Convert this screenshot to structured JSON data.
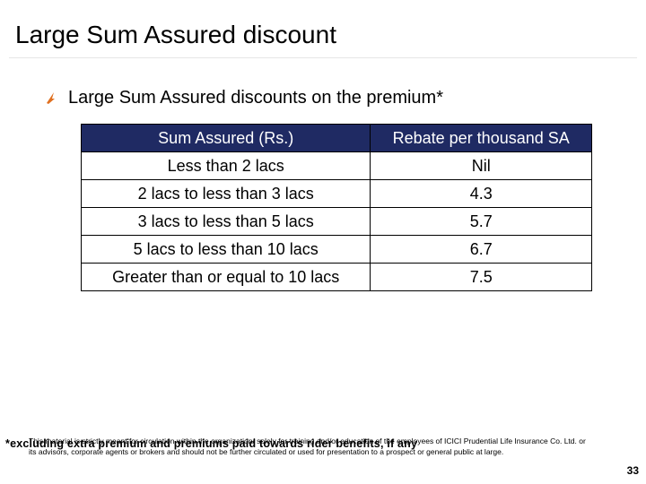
{
  "slide": {
    "title": "Large Sum Assured discount",
    "bullet": "Large Sum Assured discounts on the premium*",
    "table": {
      "headers": [
        "Sum Assured (Rs.)",
        "Rebate per thousand SA"
      ],
      "rows": [
        [
          "Less than 2 lacs",
          "Nil"
        ],
        [
          "2 lacs to less than 3 lacs",
          "4.3"
        ],
        [
          "3 lacs to less than 5 lacs",
          "5.7"
        ],
        [
          "5 lacs to less than 10 lacs",
          "6.7"
        ],
        [
          "Greater than or equal to 10 lacs",
          "7.5"
        ]
      ]
    },
    "footnote": "*excluding extra premium and premiums paid towards rider benefits, if any",
    "disclaimer": "This material is strictly meant for circulation within the organization/ solely for training and/or education of the employees of ICICI Prudential Life Insurance Co. Ltd. or its advisors, corporate agents or brokers and should not be further circulated or used for presentation to a prospect or general public at large.",
    "page_number": "33"
  },
  "colors": {
    "header_background": "#1f2a63",
    "bullet_accent": "#e07020"
  },
  "icons": {
    "bullet": "arrow-bullet-icon"
  }
}
